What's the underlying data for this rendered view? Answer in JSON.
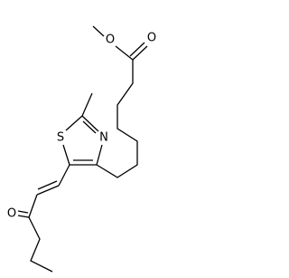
{
  "atoms": [
    {
      "label": "O"
    },
    {
      "label": "O"
    },
    {
      "label": "S"
    },
    {
      "label": "N"
    },
    {
      "label": "O"
    }
  ]
}
